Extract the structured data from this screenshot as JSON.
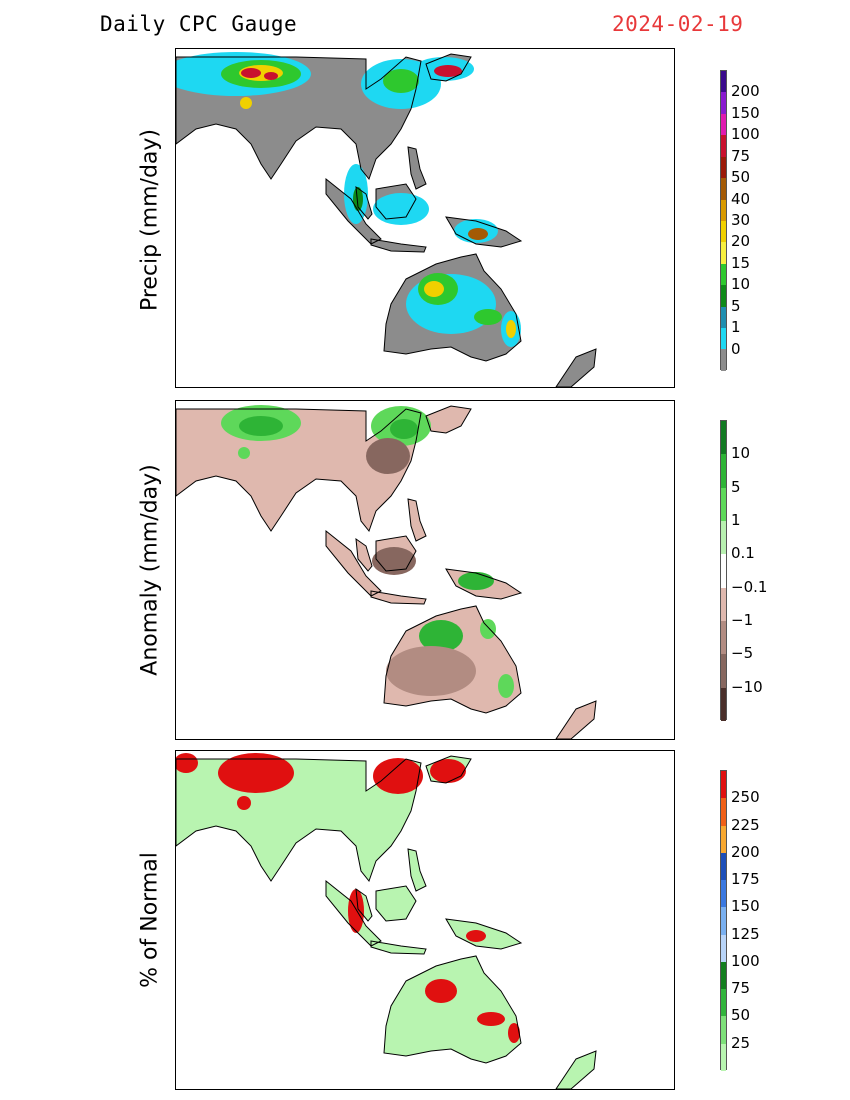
{
  "header": {
    "title": "Daily CPC Gauge",
    "date": "2024-02-19",
    "date_color": "#e8383a"
  },
  "panels": [
    {
      "ylabel": "Precip (mm/day)",
      "legend": [
        {
          "label": "200",
          "color": "#3a0a8c"
        },
        {
          "label": "150",
          "color": "#8a1ad0"
        },
        {
          "label": "100",
          "color": "#e01ab0"
        },
        {
          "label": "75",
          "color": "#c8102e"
        },
        {
          "label": "50",
          "color": "#9b1a08"
        },
        {
          "label": "40",
          "color": "#a45a05"
        },
        {
          "label": "30",
          "color": "#d89a00"
        },
        {
          "label": "20",
          "color": "#f0d000"
        },
        {
          "label": "15",
          "color": "#f8f040"
        },
        {
          "label": "10",
          "color": "#2ec82e"
        },
        {
          "label": "5",
          "color": "#0e8a18"
        },
        {
          "label": "1",
          "color": "#1f8fb0"
        },
        {
          "label": "0",
          "color": "#1ed8f2"
        },
        {
          "label": "",
          "color": "#8c8c8c"
        }
      ]
    },
    {
      "ylabel": "Anomaly (mm/day)",
      "legend": [
        {
          "label": "10",
          "color": "#127a22"
        },
        {
          "label": "5",
          "color": "#2eb436"
        },
        {
          "label": "1",
          "color": "#5ed85a"
        },
        {
          "label": "0.1",
          "color": "#b8f0b0"
        },
        {
          "label": "−0.1",
          "color": "#ffffff"
        },
        {
          "label": "−1",
          "color": "#dfb8ae"
        },
        {
          "label": "−5",
          "color": "#b28c82"
        },
        {
          "label": "−10",
          "color": "#87675f"
        },
        {
          "label": "",
          "color": "#4a2f2a"
        }
      ]
    },
    {
      "ylabel": "% of Normal",
      "legend": [
        {
          "label": "250",
          "color": "#e01010"
        },
        {
          "label": "225",
          "color": "#f06018"
        },
        {
          "label": "200",
          "color": "#f8a830"
        },
        {
          "label": "175",
          "color": "#1c4eb8"
        },
        {
          "label": "150",
          "color": "#3a78e0"
        },
        {
          "label": "125",
          "color": "#7ab0f0"
        },
        {
          "label": "100",
          "color": "#b8d4f8"
        },
        {
          "label": "75",
          "color": "#137e1e"
        },
        {
          "label": "50",
          "color": "#32b43c"
        },
        {
          "label": "25",
          "color": "#7ee07a"
        },
        {
          "label": "",
          "color": "#b8f4b0"
        }
      ]
    }
  ],
  "colors": {
    "precip_land": "#8c8c8c",
    "anom_land": "#dfb8ae",
    "anom_dark": "#87675f",
    "pct_land": "#b8f4b0",
    "outline": "#000000"
  }
}
